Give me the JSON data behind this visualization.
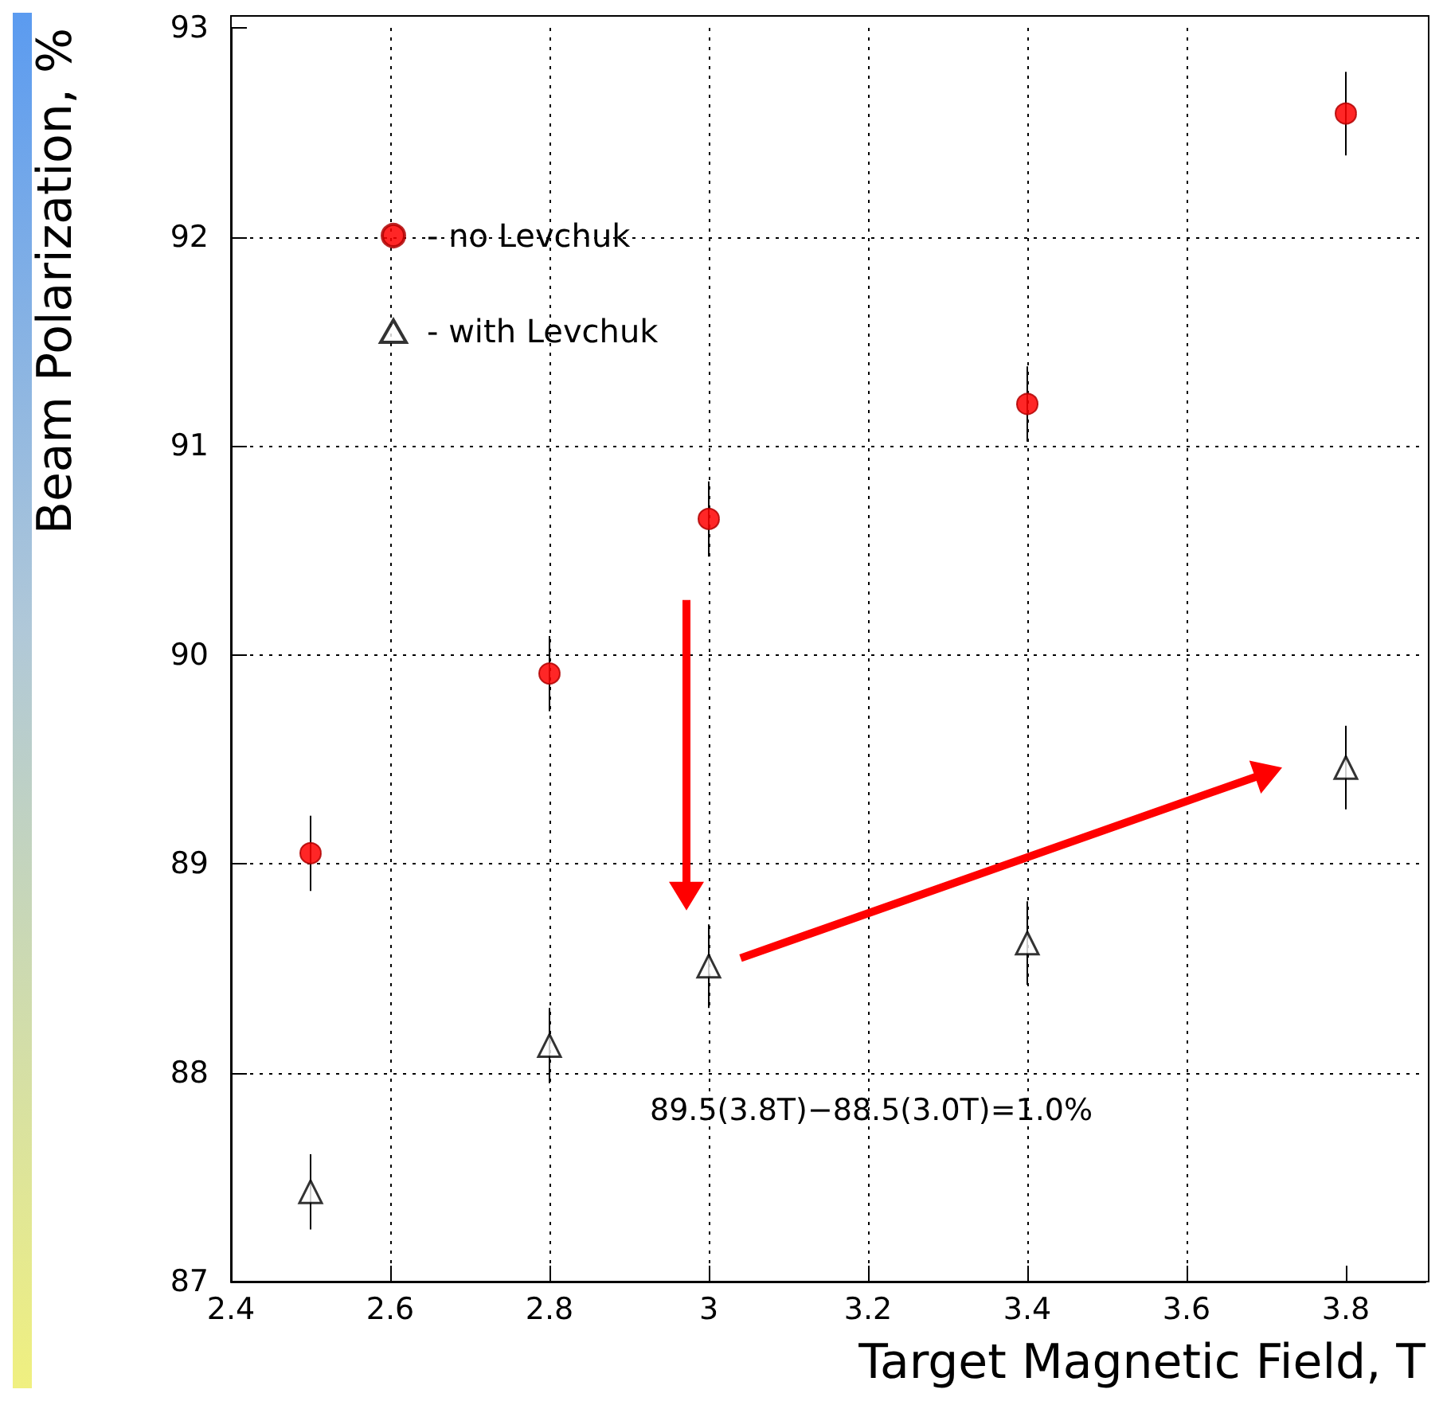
{
  "chart_data": {
    "type": "scatter",
    "xlabel": "Target Magnetic Field, T",
    "ylabel": "Beam Polarization, %",
    "x": [
      2.5,
      2.8,
      3.0,
      3.4,
      3.8
    ],
    "series": [
      {
        "name": "- no Levchuk",
        "color": "#ff0000",
        "marker": "circle",
        "values": [
          89.05,
          89.91,
          90.65,
          91.2,
          92.59
        ],
        "errors": [
          0.18,
          0.18,
          0.18,
          0.18,
          0.2
        ]
      },
      {
        "name": "- with Levchuk",
        "color": "#000000",
        "marker": "triangle",
        "values": [
          87.43,
          88.13,
          88.51,
          88.62,
          89.46
        ],
        "errors": [
          0.18,
          0.18,
          0.2,
          0.2,
          0.2
        ]
      }
    ],
    "xlim": [
      2.4,
      3.9
    ],
    "xticks": [
      2.4,
      2.6,
      2.8,
      3,
      3.2,
      3.4,
      3.6,
      3.8
    ],
    "ylim": [
      87,
      93
    ],
    "yticks": [
      87,
      88,
      89,
      90,
      91,
      92,
      93
    ],
    "grid": true,
    "legend": "top left",
    "annotations": [
      "89.5(3.8T)−88.5(3.0T)=1.0%"
    ]
  }
}
